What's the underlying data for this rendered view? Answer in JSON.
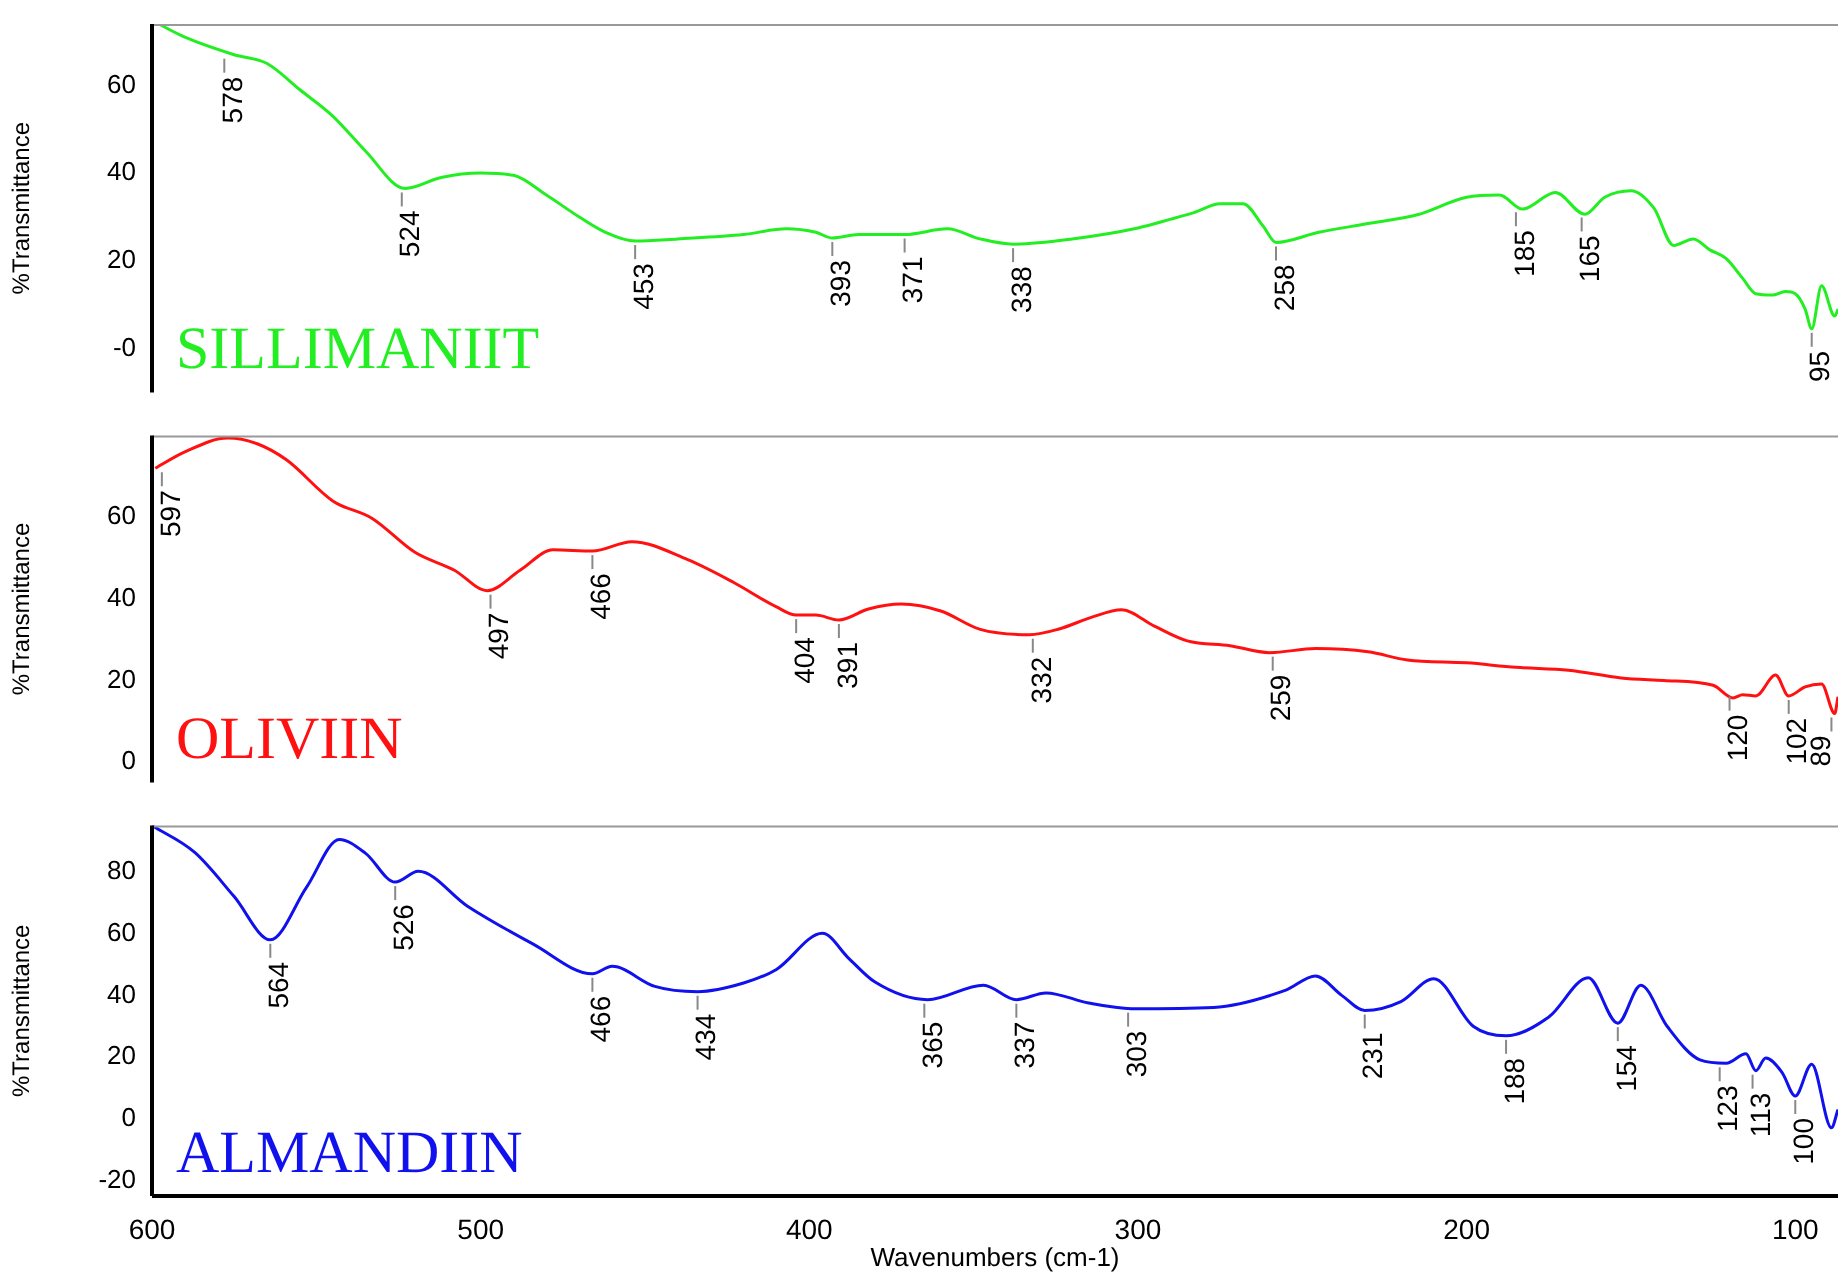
{
  "chart_data": [
    {
      "type": "line",
      "ylabel": "%Transmittance",
      "xlim": [
        600,
        87
      ],
      "ylim": [
        -10,
        74
      ],
      "yticks": [
        {
          "value": 0,
          "label": "-0"
        },
        20,
        40,
        60
      ],
      "tick_labels": "y",
      "grid": false,
      "legend": false,
      "series": [
        {
          "name": "SILLIMANIIT",
          "color": "#22ee22",
          "x": [
            598,
            590,
            575,
            565,
            555,
            545,
            535,
            523,
            512,
            500,
            490,
            480,
            470,
            462,
            453,
            440,
            420,
            407,
            398,
            393,
            385,
            371,
            358,
            348,
            338,
            320,
            300,
            290,
            283,
            275,
            268,
            262,
            258,
            245,
            230,
            215,
            200,
            190,
            183,
            173,
            164,
            158,
            150,
            143,
            137,
            131,
            126,
            121,
            116,
            112,
            107,
            103,
            100,
            97,
            95,
            92,
            88,
            87
          ],
          "values": [
            74,
            71,
            67,
            65,
            59,
            53,
            45,
            36.5,
            39,
            40,
            39.5,
            35,
            30,
            26.5,
            24.5,
            25,
            26,
            27.3,
            26.5,
            25.2,
            26,
            26,
            27.3,
            25,
            23.8,
            25,
            27.5,
            29.5,
            31,
            33,
            33,
            28,
            24.2,
            26.5,
            28.5,
            30.5,
            34.5,
            35,
            31.8,
            35.6,
            30.6,
            34.5,
            36,
            32,
            23.5,
            25,
            22.5,
            20.5,
            16,
            12.5,
            12.2,
            13,
            12.5,
            9,
            4.5,
            14.3,
            7.4,
            9
          ]
        }
      ],
      "annotations": [
        {
          "text": "578",
          "x": 578,
          "y": 67
        },
        {
          "text": "524",
          "x": 524,
          "y": 36.5
        },
        {
          "text": "453",
          "x": 453,
          "y": 24.5
        },
        {
          "text": "393",
          "x": 393,
          "y": 25.2
        },
        {
          "text": "371",
          "x": 371,
          "y": 26
        },
        {
          "text": "338",
          "x": 338,
          "y": 23.8
        },
        {
          "text": "258",
          "x": 258,
          "y": 24.2
        },
        {
          "text": "185",
          "x": 185,
          "y": 32
        },
        {
          "text": "165",
          "x": 165,
          "y": 30.8
        },
        {
          "text": "95",
          "x": 95,
          "y": 4.5
        }
      ]
    },
    {
      "type": "line",
      "ylabel": "%Transmittance",
      "xlim": [
        600,
        87
      ],
      "ylim": [
        -5,
        80
      ],
      "yticks": [
        0,
        20,
        40,
        60
      ],
      "tick_labels": "y",
      "grid": false,
      "legend": false,
      "series": [
        {
          "name": "OLIVIIN",
          "color": "#ff1111",
          "x": [
            599,
            590,
            577,
            568,
            559,
            545,
            533,
            520,
            508,
            498,
            488,
            478,
            466,
            454,
            437,
            423,
            410,
            404,
            398,
            391,
            382,
            372,
            360,
            348,
            333,
            324,
            314,
            305,
            295,
            285,
            272,
            260,
            246,
            230,
            218,
            200,
            185,
            169,
            153,
            140,
            125,
            119,
            116,
            112,
            106,
            102,
            97,
            92,
            88,
            87
          ],
          "values": [
            72,
            76,
            79.4,
            78,
            74,
            64,
            59.7,
            51.4,
            47,
            42,
            47,
            52,
            51.7,
            54,
            49.6,
            44,
            38,
            36,
            36,
            34.8,
            37.5,
            38.7,
            37,
            32.5,
            31.2,
            32.6,
            35.5,
            37.3,
            33.3,
            29.7,
            28.5,
            26.8,
            27.8,
            27,
            25,
            24.3,
            23.2,
            22.5,
            20.6,
            20,
            18.8,
            15.7,
            16.5,
            16.2,
            21.3,
            16.2,
            18.4,
            19.1,
            11.9,
            16
          ]
        }
      ],
      "annotations": [
        {
          "text": "597",
          "x": 597,
          "y": 72
        },
        {
          "text": "497",
          "x": 497,
          "y": 42
        },
        {
          "text": "466",
          "x": 466,
          "y": 51.7
        },
        {
          "text": "404",
          "x": 404,
          "y": 36
        },
        {
          "text": "391",
          "x": 391,
          "y": 34.8
        },
        {
          "text": "332",
          "x": 332,
          "y": 31.2
        },
        {
          "text": "259",
          "x": 259,
          "y": 26.8
        },
        {
          "text": "120",
          "x": 120,
          "y": 17
        },
        {
          "text": "102",
          "x": 102,
          "y": 16.2
        },
        {
          "text": "89",
          "x": 89,
          "y": 11.9
        }
      ]
    },
    {
      "type": "line",
      "xlabel": "Wavenumbers (cm-1)",
      "ylabel": "%Transmittance",
      "xlim": [
        600,
        87
      ],
      "ylim": [
        -25,
        95
      ],
      "xticks": [
        600,
        500,
        400,
        300,
        200,
        100
      ],
      "yticks": [
        -20,
        0,
        20,
        40,
        60,
        80
      ],
      "grid": false,
      "legend": false,
      "series": [
        {
          "name": "ALMANDIIN",
          "color": "#1111ee",
          "x": [
            600,
            587,
            575,
            564,
            553,
            543,
            535,
            526,
            519,
            504,
            484,
            466,
            460,
            447,
            434,
            420,
            410,
            396,
            388,
            380,
            364,
            347,
            337,
            328,
            315,
            302,
            277,
            255,
            246,
            238,
            231,
            220,
            210,
            198,
            188,
            175,
            163,
            154,
            147,
            139,
            129,
            121,
            115,
            112,
            109,
            104,
            100,
            95,
            89,
            87
          ],
          "values": [
            95,
            86.3,
            72,
            58,
            75,
            90.5,
            86,
            76.7,
            80.2,
            68.9,
            56.6,
            47,
            49.4,
            42.9,
            41.2,
            44,
            48.4,
            60.1,
            52,
            44.3,
            38.6,
            43.3,
            38.6,
            40.8,
            37.5,
            35.7,
            36.1,
            41.7,
            46.3,
            40,
            35.1,
            38,
            45.4,
            30,
            26.9,
            33,
            45.7,
            31,
            43.3,
            30,
            19.1,
            18,
            21.1,
            15.6,
            19.7,
            15,
            7.4,
            17.7,
            -2.9,
            3
          ]
        }
      ],
      "annotations": [
        {
          "text": "564",
          "x": 564,
          "y": 58
        },
        {
          "text": "526",
          "x": 526,
          "y": 76.7
        },
        {
          "text": "466",
          "x": 466,
          "y": 47
        },
        {
          "text": "434",
          "x": 434,
          "y": 41.2
        },
        {
          "text": "365",
          "x": 365,
          "y": 38.6
        },
        {
          "text": "337",
          "x": 337,
          "y": 38.6
        },
        {
          "text": "303",
          "x": 303,
          "y": 35.7
        },
        {
          "text": "231",
          "x": 231,
          "y": 35.1
        },
        {
          "text": "188",
          "x": 188,
          "y": 26.9
        },
        {
          "text": "154",
          "x": 154,
          "y": 31
        },
        {
          "text": "123",
          "x": 123,
          "y": 18
        },
        {
          "text": "113",
          "x": 113,
          "y": 15.6
        },
        {
          "text": "100",
          "x": 100,
          "y": 7.4
        }
      ]
    }
  ]
}
